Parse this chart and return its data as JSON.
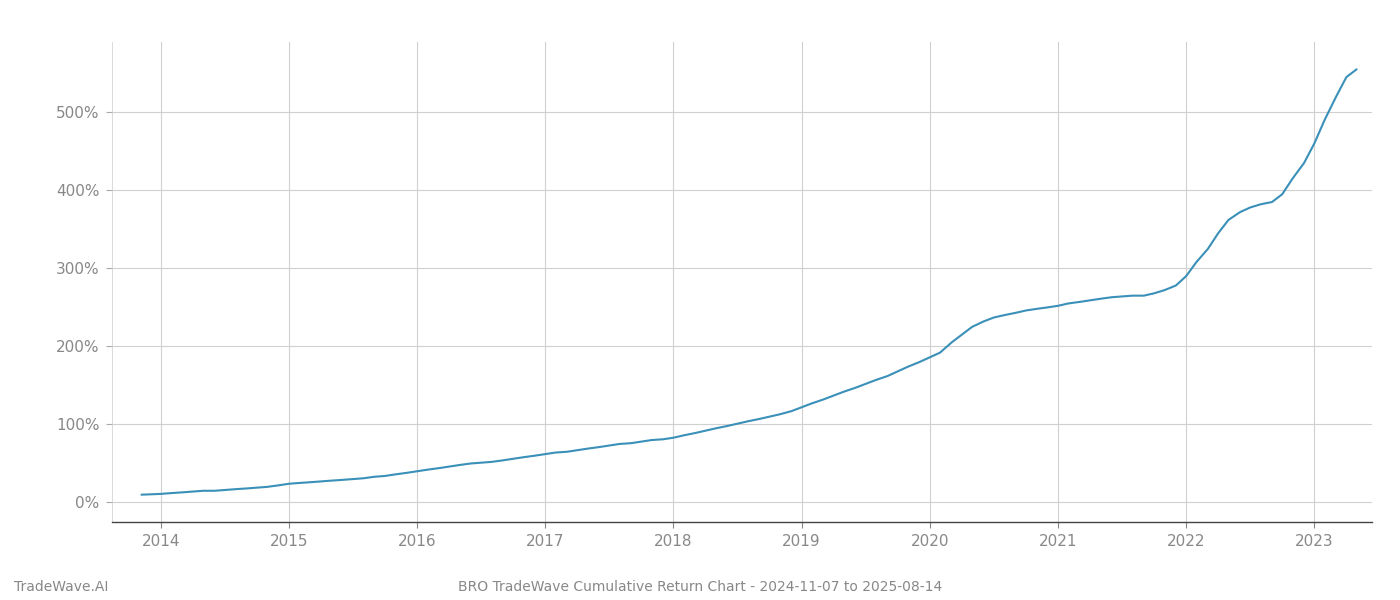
{
  "title": "BRO TradeWave Cumulative Return Chart - 2024-11-07 to 2025-08-14",
  "watermark": "TradeWave.AI",
  "line_color": "#3a90b8",
  "background_color": "#ffffff",
  "grid_color": "#d0d0d0",
  "x_years": [
    2014,
    2015,
    2016,
    2017,
    2018,
    2019,
    2020,
    2021,
    2022,
    2023
  ],
  "y_ticks": [
    0,
    100,
    200,
    300,
    400,
    500
  ],
  "y_labels": [
    "0%",
    "100%",
    "200%",
    "300%",
    "400%",
    "500%"
  ],
  "xlim_start": 2013.62,
  "xlim_end": 2023.45,
  "ylim_min": -25,
  "ylim_max": 590,
  "tick_color": "#888888",
  "data_x": [
    2013.85,
    2014.0,
    2014.08,
    2014.17,
    2014.25,
    2014.33,
    2014.42,
    2014.5,
    2014.58,
    2014.67,
    2014.75,
    2014.83,
    2014.92,
    2015.0,
    2015.08,
    2015.17,
    2015.25,
    2015.33,
    2015.42,
    2015.5,
    2015.58,
    2015.67,
    2015.75,
    2015.83,
    2015.92,
    2016.0,
    2016.08,
    2016.17,
    2016.25,
    2016.33,
    2016.42,
    2016.5,
    2016.58,
    2016.67,
    2016.75,
    2016.83,
    2016.92,
    2017.0,
    2017.08,
    2017.17,
    2017.25,
    2017.33,
    2017.42,
    2017.5,
    2017.58,
    2017.67,
    2017.75,
    2017.83,
    2017.92,
    2018.0,
    2018.08,
    2018.17,
    2018.25,
    2018.33,
    2018.42,
    2018.5,
    2018.58,
    2018.67,
    2018.75,
    2018.83,
    2018.92,
    2019.0,
    2019.08,
    2019.17,
    2019.25,
    2019.33,
    2019.42,
    2019.5,
    2019.58,
    2019.67,
    2019.75,
    2019.83,
    2019.92,
    2020.0,
    2020.08,
    2020.17,
    2020.25,
    2020.33,
    2020.42,
    2020.5,
    2020.58,
    2020.67,
    2020.75,
    2020.83,
    2020.92,
    2021.0,
    2021.08,
    2021.17,
    2021.25,
    2021.33,
    2021.42,
    2021.5,
    2021.58,
    2021.67,
    2021.75,
    2021.83,
    2021.92,
    2022.0,
    2022.08,
    2022.17,
    2022.25,
    2022.33,
    2022.42,
    2022.5,
    2022.58,
    2022.67,
    2022.75,
    2022.83,
    2022.92,
    2023.0,
    2023.08,
    2023.17,
    2023.25,
    2023.33
  ],
  "data_y": [
    10,
    11,
    12,
    13,
    14,
    15,
    15,
    16,
    17,
    18,
    19,
    20,
    22,
    24,
    25,
    26,
    27,
    28,
    29,
    30,
    31,
    33,
    34,
    36,
    38,
    40,
    42,
    44,
    46,
    48,
    50,
    51,
    52,
    54,
    56,
    58,
    60,
    62,
    64,
    65,
    67,
    69,
    71,
    73,
    75,
    76,
    78,
    80,
    81,
    83,
    86,
    89,
    92,
    95,
    98,
    101,
    104,
    107,
    110,
    113,
    117,
    122,
    127,
    132,
    137,
    142,
    147,
    152,
    157,
    162,
    168,
    174,
    180,
    186,
    192,
    205,
    215,
    225,
    232,
    237,
    240,
    243,
    246,
    248,
    250,
    252,
    255,
    257,
    259,
    261,
    263,
    264,
    265,
    265,
    268,
    272,
    278,
    290,
    308,
    325,
    345,
    362,
    372,
    378,
    382,
    385,
    395,
    415,
    435,
    460,
    490,
    520,
    545,
    555
  ]
}
